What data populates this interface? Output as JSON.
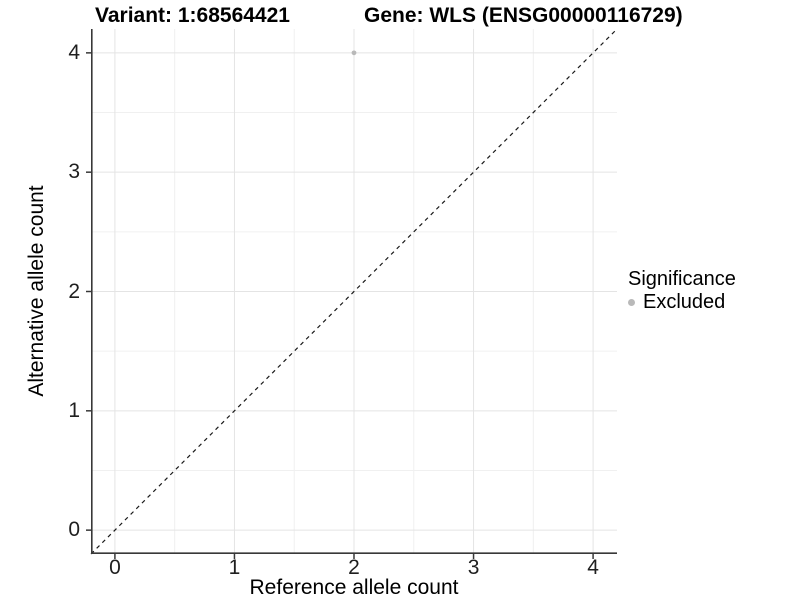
{
  "chart_data": {
    "type": "scatter",
    "title_left": "Variant: 1:68564421",
    "title_right": "Gene: WLS (ENSG00000116729)",
    "xlabel": "Reference allele count",
    "ylabel": "Alternative allele count",
    "xlim": [
      -0.2,
      4.2
    ],
    "ylim": [
      -0.2,
      4.2
    ],
    "x_ticks": [
      0,
      1,
      2,
      3,
      4
    ],
    "y_ticks": [
      0,
      1,
      2,
      3,
      4
    ],
    "x_minor": [
      0.5,
      1.5,
      2.5,
      3.5
    ],
    "y_minor": [
      0.5,
      1.5,
      2.5,
      3.5
    ],
    "grid": true,
    "identity_line": {
      "style": "dashed",
      "from": -0.2,
      "to": 4.2
    },
    "series": [
      {
        "name": "Excluded",
        "color": "#b9b9b9",
        "points": [
          {
            "x": 2,
            "y": 4
          }
        ]
      }
    ],
    "legend": {
      "title": "Significance",
      "position": "right",
      "items": [
        {
          "label": "Excluded",
          "color": "#b9b9b9"
        }
      ]
    },
    "colors": {
      "background": "#ffffff",
      "grid_major": "#e4e4e4",
      "grid_minor": "#f0f0f0",
      "axis": "#383838",
      "tick_text": "#1f1f1f",
      "identity_line": "#1a1a1a",
      "excluded_point": "#b9b9b9"
    }
  }
}
